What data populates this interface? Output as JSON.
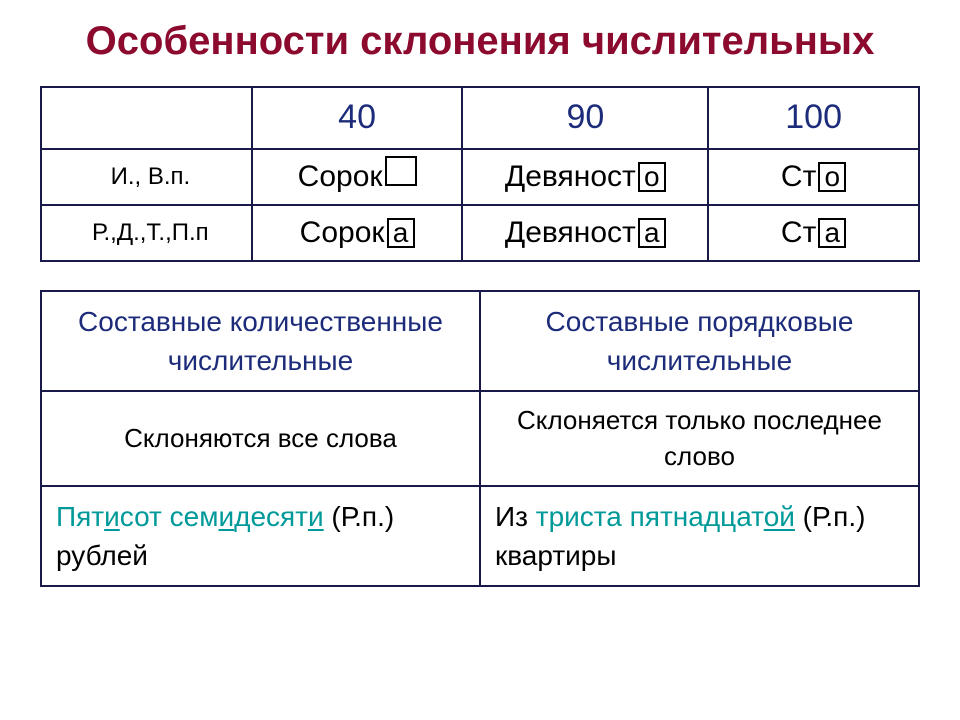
{
  "title": "Особенности склонения числительных",
  "table1": {
    "row_labels": [
      "И., В.п.",
      "Р.,Д.,Т.,П.п"
    ],
    "col_headers": [
      "40",
      "90",
      "100"
    ],
    "header_color": "#1d2c7a",
    "border_color": "#1a1a4a",
    "cells": [
      [
        {
          "stem": "Сорок",
          "ending": "",
          "ending_empty": true
        },
        {
          "stem": "Девяност",
          "ending": "о",
          "ending_empty": false
        },
        {
          "stem": "Ст",
          "ending": "о",
          "ending_empty": false
        }
      ],
      [
        {
          "stem": "Сорок",
          "ending": "а",
          "ending_empty": false
        },
        {
          "stem": "Девяност",
          "ending": "а",
          "ending_empty": false
        },
        {
          "stem": "Ст",
          "ending": "а",
          "ending_empty": false
        }
      ]
    ],
    "label_fontsize": 24,
    "cell_fontsize": 30,
    "header_fontsize": 34
  },
  "table2": {
    "headers": [
      "Составные количественные числительные",
      "Составные порядковые числительные"
    ],
    "rules": [
      "Склоняются все слова",
      "Склоняется только последнее слово"
    ],
    "ex_left": {
      "pre": "",
      "hl_parts": [
        {
          "t": "Пят",
          "u": false
        },
        {
          "t": "и",
          "u": true
        },
        {
          "t": "сот сем",
          "u": false
        },
        {
          "t": "и",
          "u": true
        },
        {
          "t": "десят",
          "u": false
        },
        {
          "t": "и",
          "u": true
        }
      ],
      "mid": " (Р.п.) рублей",
      "color": "#009999"
    },
    "ex_right": {
      "pre": "Из ",
      "hl_parts": [
        {
          "t": "триста пятнадцат",
          "u": false
        },
        {
          "t": "ой",
          "u": true
        }
      ],
      "mid": " (Р.п.) квартиры",
      "color": "#009999"
    },
    "header_color": "#1d2c7a",
    "head_fontsize": 28,
    "cell_fontsize": 26,
    "example_fontsize": 28
  },
  "styling": {
    "title_color": "#8b0a2e",
    "title_fontsize": 40,
    "background_color": "#ffffff",
    "text_color": "#000000",
    "ending_box_border": "#000000"
  }
}
